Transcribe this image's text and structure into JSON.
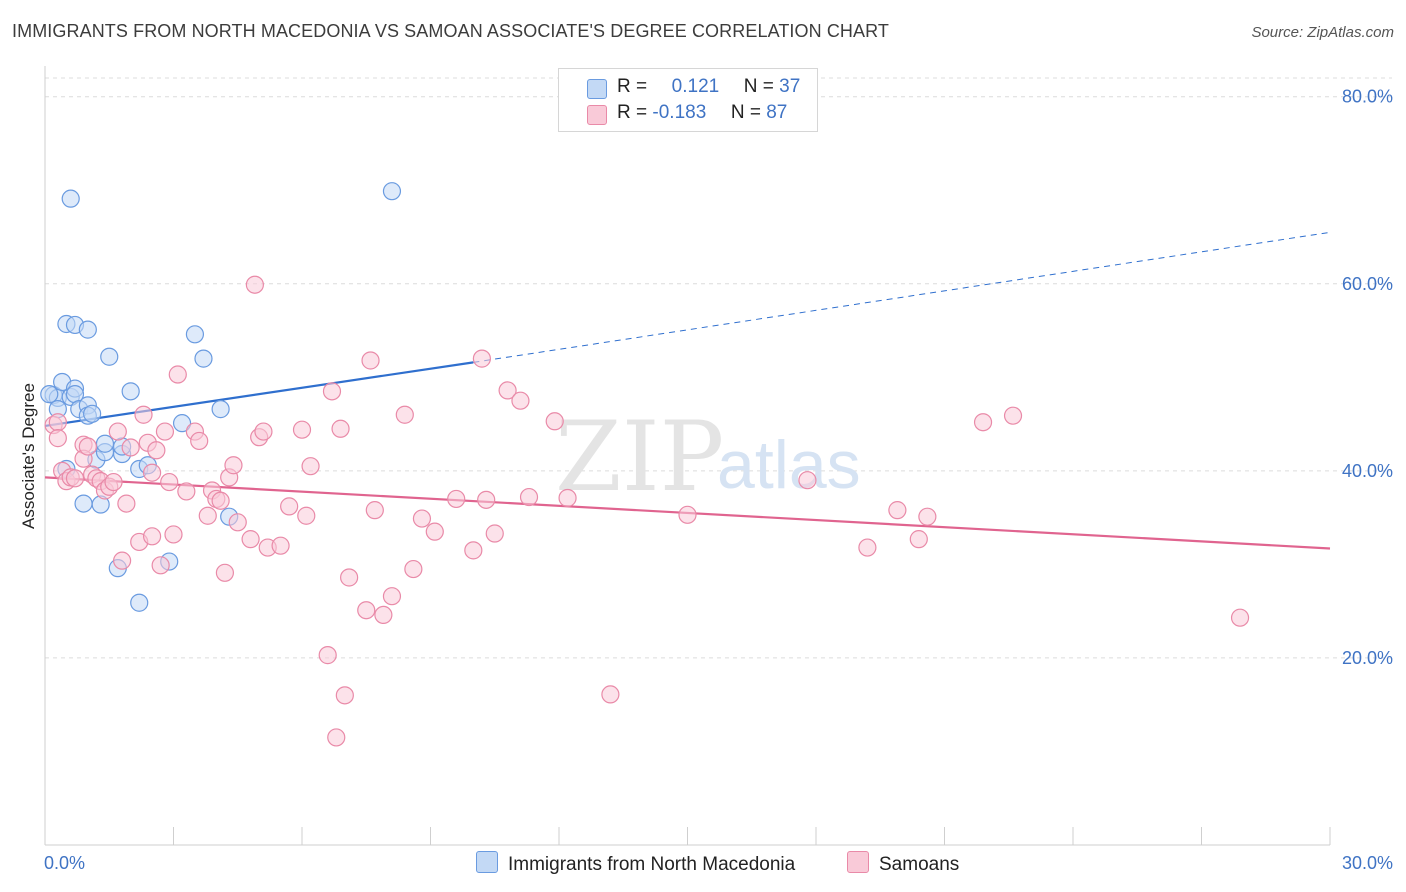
{
  "title": "IMMIGRANTS FROM NORTH MACEDONIA VS SAMOAN ASSOCIATE'S DEGREE CORRELATION CHART",
  "source": "Source: ZipAtlas.com",
  "watermark": {
    "zip": "ZIP",
    "atlas": "atlas"
  },
  "legend": {
    "rows": [
      {
        "r_label": "R =",
        "r_value": "0.121",
        "n_label": "N =",
        "n_value": "37",
        "color": "#a8c8f0",
        "border": "#6a9be0"
      },
      {
        "r_label": "R =",
        "r_value": "-0.183",
        "n_label": "N =",
        "n_value": "87",
        "color": "#f7b8cb",
        "border": "#e98aa8"
      }
    ]
  },
  "bottom_legend": [
    {
      "label": "Immigrants from North Macedonia",
      "color": "#c3d9f5",
      "border": "#6a9be0"
    },
    {
      "label": "Samoans",
      "color": "#f9cad8",
      "border": "#e98aa8"
    }
  ],
  "chart_data": {
    "type": "scatter",
    "xlabel": "",
    "ylabel": "Associate's Degree",
    "xlim": [
      0,
      30
    ],
    "ylim": [
      0,
      82
    ],
    "x_tick_labels": [
      "0.0%",
      "30.0%"
    ],
    "y_ticks": [
      20,
      40,
      60,
      80
    ],
    "y_tick_labels": [
      "20.0%",
      "40.0%",
      "60.0%",
      "80.0%"
    ],
    "grid": "horizontal dashed",
    "legend_position": "top-center",
    "series": [
      {
        "name": "Immigrants from North Macedonia",
        "color": "#6a9be0",
        "fill": "#c3d9f5",
        "trend": {
          "x": [
            0,
            10
          ],
          "y": [
            44.8,
            51.6
          ],
          "extend_dashed_to_x": 30,
          "extend_y": 65.5,
          "line_color": "#2f6fce"
        },
        "points": [
          [
            0.2,
            48.1
          ],
          [
            0.3,
            47.8
          ],
          [
            0.3,
            46.6
          ],
          [
            0.4,
            49.5
          ],
          [
            0.5,
            55.7
          ],
          [
            0.5,
            40.2
          ],
          [
            0.6,
            69.1
          ],
          [
            0.6,
            47.9
          ],
          [
            0.7,
            55.6
          ],
          [
            0.7,
            48.8
          ],
          [
            0.7,
            48.2
          ],
          [
            0.8,
            46.6
          ],
          [
            0.9,
            36.5
          ],
          [
            1.0,
            47.0
          ],
          [
            1.0,
            55.1
          ],
          [
            1.0,
            45.9
          ],
          [
            1.1,
            46.1
          ],
          [
            1.2,
            41.2
          ],
          [
            1.3,
            36.4
          ],
          [
            1.4,
            42.0
          ],
          [
            1.4,
            42.9
          ],
          [
            1.5,
            52.2
          ],
          [
            1.7,
            29.6
          ],
          [
            1.8,
            41.8
          ],
          [
            1.8,
            42.6
          ],
          [
            2.0,
            48.5
          ],
          [
            2.2,
            25.9
          ],
          [
            2.2,
            40.2
          ],
          [
            2.4,
            40.6
          ],
          [
            2.9,
            30.3
          ],
          [
            3.2,
            45.1
          ],
          [
            3.5,
            54.6
          ],
          [
            3.7,
            52.0
          ],
          [
            4.1,
            46.6
          ],
          [
            4.3,
            35.1
          ],
          [
            8.1,
            69.9
          ],
          [
            0.1,
            48.2
          ]
        ]
      },
      {
        "name": "Samoans",
        "color": "#e98aa8",
        "fill": "#f9cad8",
        "trend": {
          "x": [
            0,
            30
          ],
          "y": [
            39.3,
            31.7
          ],
          "line_color": "#e0648f"
        },
        "points": [
          [
            0.2,
            44.9
          ],
          [
            0.3,
            45.2
          ],
          [
            0.3,
            43.5
          ],
          [
            0.4,
            40.0
          ],
          [
            0.5,
            38.9
          ],
          [
            0.6,
            39.3
          ],
          [
            0.7,
            39.2
          ],
          [
            0.9,
            42.8
          ],
          [
            0.9,
            41.3
          ],
          [
            1.0,
            42.6
          ],
          [
            1.1,
            39.6
          ],
          [
            1.2,
            39.2
          ],
          [
            1.3,
            38.9
          ],
          [
            1.4,
            37.9
          ],
          [
            1.5,
            38.3
          ],
          [
            1.6,
            38.8
          ],
          [
            1.7,
            44.2
          ],
          [
            1.8,
            30.4
          ],
          [
            1.9,
            36.5
          ],
          [
            2.0,
            42.5
          ],
          [
            2.2,
            32.4
          ],
          [
            2.3,
            46.0
          ],
          [
            2.4,
            43.0
          ],
          [
            2.5,
            39.8
          ],
          [
            2.6,
            42.2
          ],
          [
            2.7,
            29.9
          ],
          [
            2.8,
            44.2
          ],
          [
            2.9,
            38.8
          ],
          [
            3.0,
            33.2
          ],
          [
            3.1,
            50.3
          ],
          [
            3.3,
            37.8
          ],
          [
            3.5,
            44.2
          ],
          [
            3.6,
            43.2
          ],
          [
            3.8,
            35.2
          ],
          [
            3.9,
            37.9
          ],
          [
            4.0,
            37.0
          ],
          [
            4.1,
            36.8
          ],
          [
            4.2,
            29.1
          ],
          [
            4.3,
            39.3
          ],
          [
            4.4,
            40.6
          ],
          [
            4.5,
            34.5
          ],
          [
            4.8,
            32.7
          ],
          [
            4.9,
            59.9
          ],
          [
            5.0,
            43.6
          ],
          [
            5.1,
            44.2
          ],
          [
            5.2,
            31.8
          ],
          [
            5.5,
            32.0
          ],
          [
            5.7,
            36.2
          ],
          [
            6.0,
            44.4
          ],
          [
            6.1,
            35.2
          ],
          [
            6.2,
            40.5
          ],
          [
            6.6,
            20.3
          ],
          [
            6.7,
            48.5
          ],
          [
            6.8,
            11.5
          ],
          [
            6.9,
            44.5
          ],
          [
            7.0,
            16.0
          ],
          [
            7.1,
            28.6
          ],
          [
            7.5,
            25.1
          ],
          [
            7.6,
            51.8
          ],
          [
            7.7,
            35.8
          ],
          [
            7.9,
            24.6
          ],
          [
            8.1,
            26.6
          ],
          [
            8.4,
            46.0
          ],
          [
            8.6,
            29.5
          ],
          [
            8.8,
            34.9
          ],
          [
            9.1,
            33.5
          ],
          [
            9.6,
            37.0
          ],
          [
            10.0,
            31.5
          ],
          [
            10.2,
            52.0
          ],
          [
            10.3,
            36.9
          ],
          [
            10.5,
            33.3
          ],
          [
            10.8,
            48.6
          ],
          [
            11.1,
            47.5
          ],
          [
            11.3,
            37.2
          ],
          [
            11.9,
            45.3
          ],
          [
            12.2,
            37.1
          ],
          [
            13.2,
            16.1
          ],
          [
            15.0,
            35.3
          ],
          [
            17.8,
            39.0
          ],
          [
            19.2,
            31.8
          ],
          [
            19.9,
            35.8
          ],
          [
            20.4,
            32.7
          ],
          [
            20.6,
            35.1
          ],
          [
            21.9,
            45.2
          ],
          [
            22.6,
            45.9
          ],
          [
            27.9,
            24.3
          ],
          [
            2.5,
            33.0
          ]
        ]
      }
    ]
  }
}
